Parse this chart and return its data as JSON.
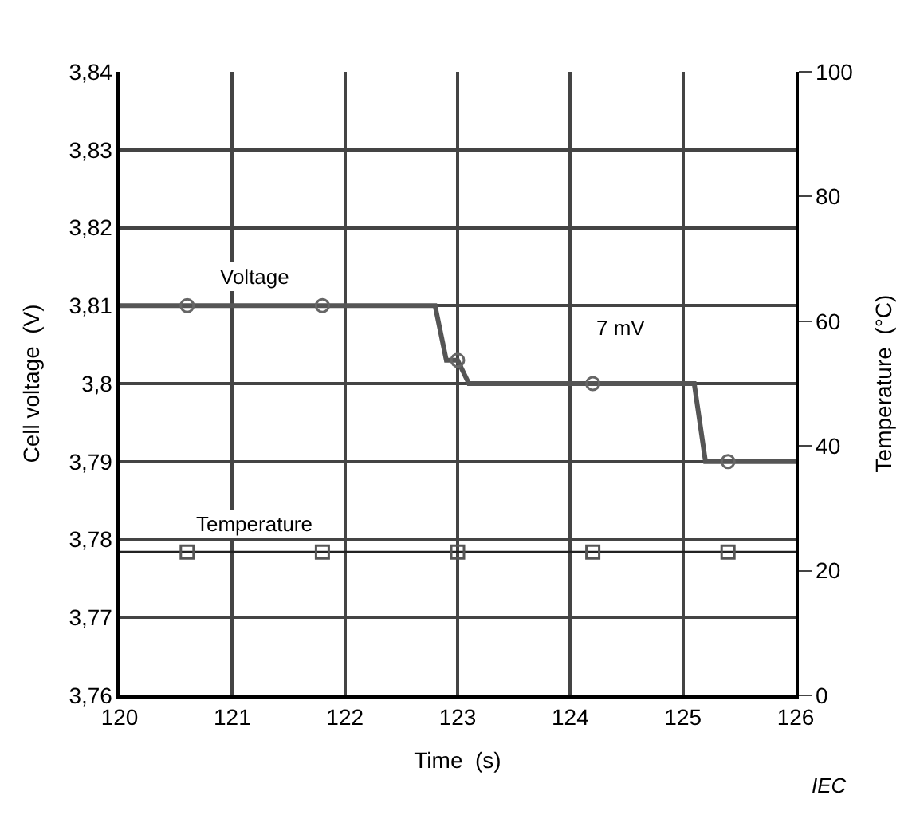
{
  "chart_data": {
    "type": "line",
    "xlabel": "Time  (s)",
    "ylabel": "Cell voltage  (V)",
    "y2label": "Temperature  (°C)",
    "xlim": [
      120,
      126
    ],
    "xticks": [
      120,
      121,
      122,
      123,
      124,
      125,
      126
    ],
    "ylim": [
      3.76,
      3.84
    ],
    "yticks": [
      {
        "value": 3.76,
        "label": "3,76"
      },
      {
        "value": 3.77,
        "label": "3,77"
      },
      {
        "value": 3.78,
        "label": "3,78"
      },
      {
        "value": 3.79,
        "label": "3,79"
      },
      {
        "value": 3.8,
        "label": "3,8"
      },
      {
        "value": 3.81,
        "label": "3,81"
      },
      {
        "value": 3.82,
        "label": "3,82"
      },
      {
        "value": 3.83,
        "label": "3,83"
      },
      {
        "value": 3.84,
        "label": "3,84"
      }
    ],
    "y2lim": [
      0,
      100
    ],
    "y2ticks": [
      0,
      20,
      40,
      60,
      80,
      100
    ],
    "grid": true,
    "legend": false,
    "series": [
      {
        "name": "Voltage",
        "color": "#555555",
        "marker": "none",
        "x": [
          120,
          122.8,
          122.9,
          123.0,
          123.1,
          125.1,
          125.2,
          126
        ],
        "values": [
          3.81,
          3.81,
          3.803,
          3.803,
          3.8,
          3.8,
          3.79,
          3.79
        ]
      },
      {
        "type": "scatter",
        "color": "#666666",
        "marker": "circle",
        "x": [
          120.6,
          121.8,
          123.0,
          124.2,
          125.4
        ],
        "values": [
          3.81,
          3.81,
          3.803,
          3.8,
          3.79
        ]
      },
      {
        "name": "Temperature",
        "axis": "y2",
        "color": "#222222",
        "marker": "none",
        "x": [
          120,
          126
        ],
        "values": [
          23,
          23
        ]
      },
      {
        "type": "scatter",
        "axis": "y2",
        "color": "#555555",
        "marker": "square",
        "x": [
          120.6,
          121.8,
          123.0,
          124.2,
          125.4
        ],
        "values": [
          23,
          23,
          23,
          23,
          23
        ]
      }
    ],
    "annotations": [
      "7 mV",
      "IEC"
    ]
  }
}
